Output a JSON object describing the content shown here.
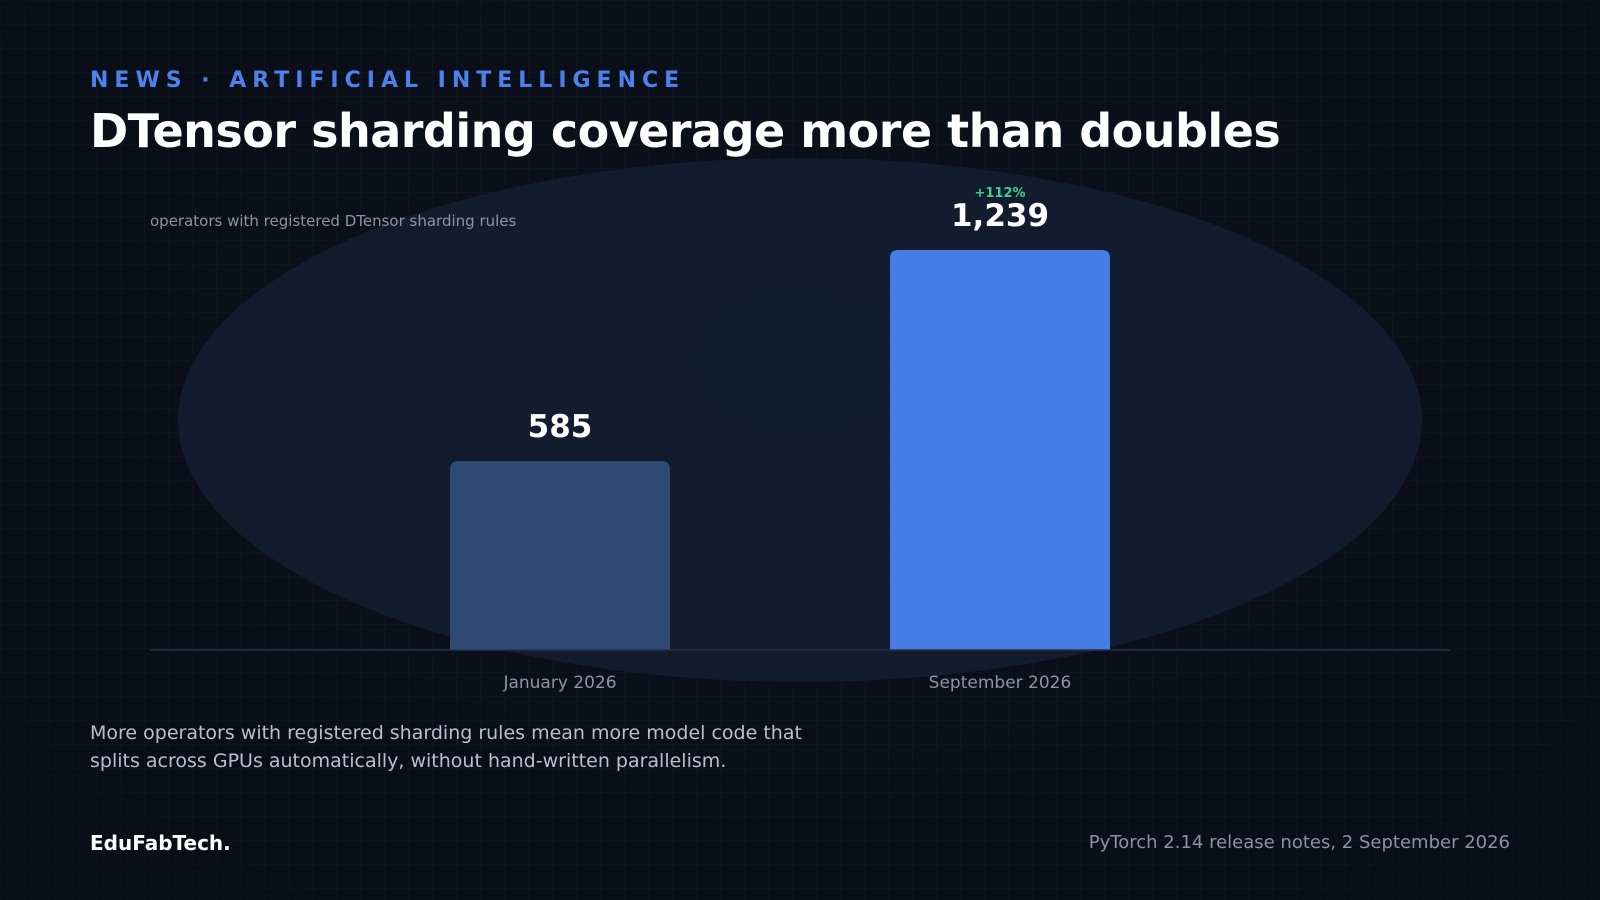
{
  "header": {
    "kicker": "NEWS · ARTIFICIAL INTELLIGENCE",
    "title": "DTensor sharding coverage more than doubles"
  },
  "chart_data": {
    "type": "bar",
    "subtitle": "operators with registered DTensor sharding rules",
    "categories": [
      "January 2026",
      "September 2026"
    ],
    "values": [
      585,
      1239
    ],
    "value_labels": [
      "585",
      "1,239"
    ],
    "change_label": "+112%",
    "ylim": [
      0,
      1239
    ],
    "grid": false,
    "colors": [
      "#2e4a75",
      "#467ce3"
    ],
    "change_color": "#3ecf8e"
  },
  "description": "More operators with registered sharding rules mean more model code that splits across GPUs automatically, without hand-written parallelism.",
  "footer": {
    "brand": "EduFabTech.",
    "source": "PyTorch 2.14 release notes, 2 September 2026"
  }
}
